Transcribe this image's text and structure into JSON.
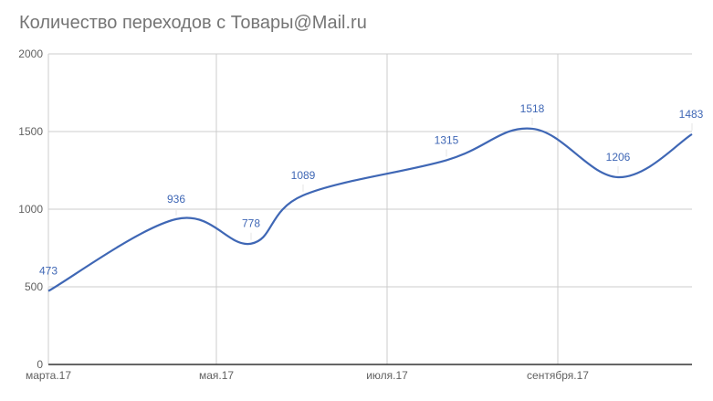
{
  "chart": {
    "title": "Количество переходов с Товары@Mail.ru",
    "y_ticks": [
      "0",
      "500",
      "1000",
      "1500",
      "2000"
    ],
    "x_ticks": [
      "марта.17",
      "мая.17",
      "июля.17",
      "сентября.17"
    ],
    "line_color": "#3f67b5"
  },
  "chart_data": {
    "type": "line",
    "title": "Количество переходов с Товары@Mail.ru",
    "xlabel": "",
    "ylabel": "",
    "ylim": [
      0,
      2000
    ],
    "grid": true,
    "legend": "none",
    "x_tick_labels": [
      "марта.17",
      "мая.17",
      "июля.17",
      "сентября.17"
    ],
    "x": [
      "2017-03",
      "2017-04",
      "2017-05",
      "2017-06",
      "2017-07",
      "2017-08",
      "2017-09",
      "2017-10"
    ],
    "series": [
      {
        "name": "Количество переходов",
        "values": [
          473,
          936,
          778,
          1089,
          1315,
          1518,
          1206,
          1483
        ]
      }
    ],
    "data_labels": [
      "473",
      "936",
      "778",
      "1089",
      "1315",
      "1518",
      "1206",
      "1483"
    ]
  }
}
